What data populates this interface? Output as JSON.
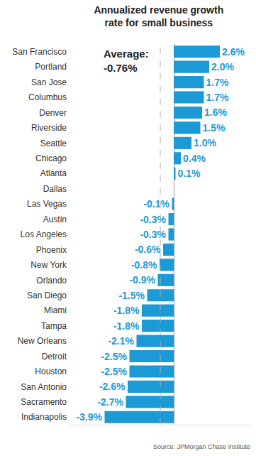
{
  "chart_data": {
    "type": "bar",
    "orientation": "horizontal",
    "title": "Annualized revenue growth\nrate for small business",
    "categories": [
      "San Francisco",
      "Portland",
      "San Jose",
      "Columbus",
      "Denver",
      "Riverside",
      "Seattle",
      "Chicago",
      "Atlanta",
      "Dallas",
      "Las Vegas",
      "Austin",
      "Los Angeles",
      "Phoenix",
      "New York",
      "Orlando",
      "San Diego",
      "Miami",
      "Tampa",
      "New Orleans",
      "Detroit",
      "Houston",
      "San Antonio",
      "Sacramento",
      "Indianapolis"
    ],
    "values": [
      2.6,
      2.0,
      1.7,
      1.7,
      1.6,
      1.5,
      1.0,
      0.4,
      0.1,
      0,
      -0.1,
      -0.3,
      -0.3,
      -0.6,
      -0.8,
      -0.9,
      -1.5,
      -1.8,
      -1.8,
      -2.1,
      -2.5,
      -2.5,
      -2.6,
      -2.7,
      -3.9
    ],
    "value_labels": [
      "2.6%",
      "2.0%",
      "1.7%",
      "1.7%",
      "1.6%",
      "1.5%",
      "1.0%",
      "0.4%",
      "0.1%",
      null,
      "-0.1%",
      "-0.3%",
      "-0.3%",
      "-0.6%",
      "-0.8%",
      "-0.9%",
      "-1.5%",
      "-1.8%",
      "-1.8%",
      "-2.1%",
      "-2.5%",
      "-2.5%",
      "-2.6%",
      "-2.7%",
      "-3.9%"
    ],
    "color": "#1b9ad6",
    "xlim": [
      -6,
      4.4
    ],
    "xticks": [],
    "data_labels": true,
    "tick_labels": "y",
    "grid": false,
    "average": {
      "label": "Average:",
      "value": -0.76,
      "value_label": "-0.76%"
    },
    "source": "Source: JPMorgan Chase Institute"
  }
}
